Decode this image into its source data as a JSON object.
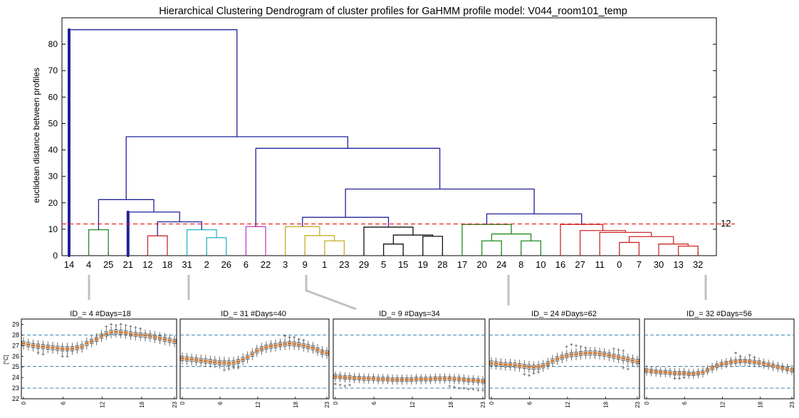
{
  "chart_data": [
    {
      "type": "dendrogram",
      "title": "Hierarchical Clustering Dendrogram of cluster profiles for GaHMM profile model: V044_room101_temp",
      "ylabel": "euclidean distance between profiles",
      "ylim": [
        0,
        90
      ],
      "yticks": [
        0,
        10,
        20,
        30,
        40,
        50,
        60,
        70,
        80
      ],
      "leaves": [
        "14",
        "4",
        "25",
        "21",
        "12",
        "18",
        "31",
        "2",
        "26",
        "6",
        "22",
        "3",
        "9",
        "1",
        "23",
        "29",
        "5",
        "15",
        "19",
        "28",
        "17",
        "20",
        "24",
        "8",
        "10",
        "16",
        "27",
        "11",
        "0",
        "7",
        "30",
        "13",
        "32"
      ],
      "cut_threshold": 12,
      "cut_label": "12",
      "colors": {
        "above_threshold": "#22229a",
        "green": "#218a21",
        "red": "#cc2a2a",
        "cyan": "#25b5c8",
        "magenta": "#c040c0",
        "yellow": "#c2b025",
        "black": "#111111",
        "threshold_line": "#ee2222"
      },
      "links": [
        {
          "l": 1,
          "r": 2,
          "h": 9.8,
          "color": "green"
        },
        {
          "l": 4,
          "r": 5,
          "h": 7.5,
          "color": "red"
        },
        {
          "l": 7,
          "r": 8,
          "h": 6.8,
          "color": "cyan"
        },
        {
          "l": 6,
          "r": 7.5,
          "h": 9.8,
          "color": "cyan"
        },
        {
          "l": 4.5,
          "r": 6.75,
          "h": 12.8,
          "color": "above_threshold"
        },
        {
          "l": 3,
          "r": 5.625,
          "h": 16.5,
          "color": "above_threshold"
        },
        {
          "l": 1.5,
          "r": 4.3125,
          "h": 21.2,
          "color": "above_threshold"
        },
        {
          "l": 9,
          "r": 10,
          "h": 11,
          "color": "magenta"
        },
        {
          "l": 13,
          "r": 14,
          "h": 5.6,
          "color": "yellow"
        },
        {
          "l": 12,
          "r": 13.5,
          "h": 7.6,
          "color": "yellow"
        },
        {
          "l": 11,
          "r": 12.75,
          "h": 11,
          "color": "yellow"
        },
        {
          "l": 16,
          "r": 17,
          "h": 4.4,
          "color": "black"
        },
        {
          "l": 18,
          "r": 19,
          "h": 7.3,
          "color": "black"
        },
        {
          "l": 16.5,
          "r": 18.5,
          "h": 7.8,
          "color": "black"
        },
        {
          "l": 15,
          "r": 17.5,
          "h": 10.8,
          "color": "black"
        },
        {
          "l": 11.875,
          "r": 16.25,
          "h": 14.5,
          "color": "above_threshold"
        },
        {
          "l": 21,
          "r": 22,
          "h": 5.6,
          "color": "green"
        },
        {
          "l": 23,
          "r": 24,
          "h": 5.6,
          "color": "green"
        },
        {
          "l": 21.5,
          "r": 23.5,
          "h": 8.2,
          "color": "green"
        },
        {
          "l": 20,
          "r": 22.5,
          "h": 11.8,
          "color": "green"
        },
        {
          "l": 28,
          "r": 29,
          "h": 5,
          "color": "red"
        },
        {
          "l": 31,
          "r": 32,
          "h": 3.6,
          "color": "red"
        },
        {
          "l": 30,
          "r": 31.5,
          "h": 4.4,
          "color": "red"
        },
        {
          "l": 28.5,
          "r": 30.75,
          "h": 7.2,
          "color": "red"
        },
        {
          "l": 27,
          "r": 29.625,
          "h": 8.8,
          "color": "red"
        },
        {
          "l": 26,
          "r": 28.3125,
          "h": 9.5,
          "color": "red"
        },
        {
          "l": 25,
          "r": 27.15625,
          "h": 11.8,
          "color": "red"
        },
        {
          "l": 21.25,
          "r": 26.078,
          "h": 15.8,
          "color": "above_threshold"
        },
        {
          "l": 14.0625,
          "r": 23.664,
          "h": 25.2,
          "color": "above_threshold"
        },
        {
          "l": 9.5,
          "r": 18.863,
          "h": 40.6,
          "color": "above_threshold"
        },
        {
          "l": 2.906,
          "r": 14.18,
          "h": 45,
          "color": "above_threshold"
        },
        {
          "l": 0,
          "r": 8.543,
          "h": 85.5,
          "color": "above_threshold"
        }
      ],
      "highlight_leaves": [
        0,
        3
      ]
    },
    {
      "type": "boxplot",
      "title": "ID_= 4 #Days=18",
      "leaf": "4",
      "ylabel": "[°C]",
      "ylim": [
        22,
        29.5
      ],
      "yticks": [
        22,
        23,
        24,
        25,
        26,
        27,
        28,
        29
      ],
      "hlines": [
        23,
        25.05,
        28
      ],
      "xticks": [
        0,
        6,
        12,
        18,
        23
      ],
      "medians": [
        27.2,
        27.1,
        27.0,
        26.95,
        26.9,
        26.85,
        26.8,
        26.75,
        26.7,
        26.7,
        26.7,
        26.8,
        26.9,
        27.2,
        27.4,
        27.6,
        27.9,
        28.1,
        28.25,
        28.3,
        28.25,
        28.2,
        28.1,
        28.05,
        28.0,
        27.95,
        27.9,
        27.8,
        27.7,
        27.6,
        27.5,
        27.4
      ],
      "spread": 0.35,
      "fliers_high": [
        [
          18,
          29.0
        ],
        [
          19,
          28.9
        ],
        [
          20,
          29.0
        ],
        [
          21,
          28.9
        ],
        [
          22,
          28.8
        ],
        [
          23,
          28.7
        ],
        [
          24,
          28.6
        ],
        [
          17,
          28.8
        ]
      ],
      "fliers_low": [
        [
          3,
          26.3
        ],
        [
          4,
          26.2
        ],
        [
          8,
          26.0
        ],
        [
          9,
          26.0
        ]
      ]
    },
    {
      "type": "boxplot",
      "title": "ID_= 31 #Days=40",
      "leaf": "31",
      "ylim": [
        22,
        29.5
      ],
      "hlines": [
        23,
        25.05,
        28
      ],
      "xticks": [
        0,
        6,
        12,
        18,
        23
      ],
      "medians": [
        25.8,
        25.75,
        25.7,
        25.65,
        25.6,
        25.55,
        25.5,
        25.45,
        25.4,
        25.4,
        25.35,
        25.4,
        25.5,
        25.7,
        25.9,
        26.2,
        26.5,
        26.7,
        26.85,
        26.95,
        27.0,
        27.1,
        27.15,
        27.2,
        27.15,
        27.1,
        27.0,
        26.9,
        26.8,
        26.6,
        26.4,
        26.3
      ],
      "spread": 0.35,
      "fliers_high": [
        [
          22,
          27.9
        ],
        [
          23,
          27.8
        ],
        [
          24,
          27.8
        ],
        [
          25,
          27.6
        ],
        [
          26,
          27.5
        ]
      ],
      "fliers_low": [
        [
          9,
          24.7
        ],
        [
          10,
          24.8
        ],
        [
          11,
          24.9
        ],
        [
          12,
          24.9
        ]
      ]
    },
    {
      "type": "boxplot",
      "title": "ID_= 9 #Days=34",
      "leaf": "9",
      "ylim": [
        22,
        29.5
      ],
      "hlines": [
        23,
        25.05,
        28
      ],
      "xticks": [
        0,
        6,
        12,
        18,
        23
      ],
      "medians": [
        24.1,
        24.05,
        24.0,
        24.0,
        23.95,
        23.95,
        23.9,
        23.9,
        23.9,
        23.85,
        23.85,
        23.85,
        23.8,
        23.8,
        23.8,
        23.8,
        23.8,
        23.85,
        23.85,
        23.85,
        23.85,
        23.9,
        23.9,
        23.9,
        23.9,
        23.85,
        23.85,
        23.8,
        23.75,
        23.75,
        23.7,
        23.65
      ],
      "spread": 0.3,
      "fliers_high": [],
      "fliers_low": [
        [
          0,
          23.4
        ],
        [
          1,
          23.3
        ],
        [
          2,
          23.2
        ],
        [
          3,
          23.3
        ],
        [
          24,
          23.2
        ],
        [
          25,
          23.1
        ],
        [
          26,
          23.0
        ],
        [
          27,
          23.0
        ],
        [
          28,
          22.9
        ],
        [
          29,
          22.9
        ],
        [
          30,
          22.8
        ],
        [
          31,
          22.8
        ]
      ]
    },
    {
      "type": "boxplot",
      "title": "ID_= 24 #Days=62",
      "leaf": "24",
      "ylim": [
        22,
        29.5
      ],
      "hlines": [
        23,
        25.05,
        28
      ],
      "xticks": [
        0,
        6,
        12,
        18,
        23
      ],
      "medians": [
        25.35,
        25.3,
        25.25,
        25.2,
        25.2,
        25.15,
        25.1,
        25.05,
        25.0,
        24.95,
        25.0,
        25.1,
        25.3,
        25.55,
        25.75,
        25.9,
        26.05,
        26.15,
        26.2,
        26.25,
        26.3,
        26.3,
        26.3,
        26.25,
        26.2,
        26.1,
        26.0,
        25.9,
        25.8,
        25.7,
        25.6,
        25.5
      ],
      "spread": 0.35,
      "fliers_high": [
        [
          16,
          26.9
        ],
        [
          17,
          27.1
        ],
        [
          18,
          27.0
        ],
        [
          19,
          26.9
        ],
        [
          20,
          26.8
        ],
        [
          26,
          26.7
        ],
        [
          27,
          26.6
        ],
        [
          28,
          26.5
        ]
      ],
      "fliers_low": [
        [
          7,
          24.3
        ],
        [
          8,
          24.2
        ],
        [
          9,
          24.4
        ],
        [
          10,
          24.5
        ],
        [
          28,
          24.9
        ],
        [
          29,
          24.8
        ]
      ]
    },
    {
      "type": "boxplot",
      "title": "ID_= 32 #Days=56",
      "leaf": "32",
      "ylim": [
        22,
        29.5
      ],
      "hlines": [
        23,
        25.05,
        28
      ],
      "xticks": [
        0,
        6,
        12,
        18,
        23
      ],
      "medians": [
        24.65,
        24.6,
        24.55,
        24.5,
        24.5,
        24.45,
        24.4,
        24.4,
        24.4,
        24.35,
        24.35,
        24.4,
        24.5,
        24.7,
        24.9,
        25.1,
        25.25,
        25.35,
        25.45,
        25.5,
        25.55,
        25.55,
        25.5,
        25.45,
        25.4,
        25.3,
        25.2,
        25.1,
        25.0,
        24.9,
        24.8,
        24.7
      ],
      "spread": 0.3,
      "fliers_high": [
        [
          19,
          26.3
        ],
        [
          20,
          26.0
        ],
        [
          22,
          26.1
        ],
        [
          23,
          25.9
        ]
      ],
      "fliers_low": [
        [
          6,
          23.9
        ],
        [
          7,
          23.9
        ],
        [
          8,
          24.0
        ]
      ]
    }
  ]
}
